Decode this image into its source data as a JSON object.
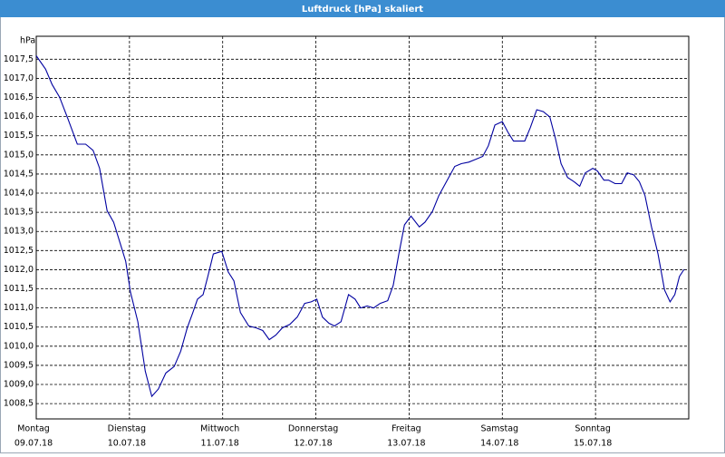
{
  "chart_data": {
    "type": "line",
    "title": "Luftdruck [hPa] skaliert",
    "y_unit": "hPa",
    "xlim": [
      0,
      7
    ],
    "ylim": [
      1008.1,
      1018.1
    ],
    "grid": true,
    "xticks": [
      {
        "value": 0,
        "label": "Montag",
        "date": "09.07.18"
      },
      {
        "value": 1,
        "label": "Dienstag",
        "date": "10.07.18"
      },
      {
        "value": 2,
        "label": "Mittwoch",
        "date": "11.07.18"
      },
      {
        "value": 3,
        "label": "Donnerstag",
        "date": "12.07.18"
      },
      {
        "value": 4,
        "label": "Freitag",
        "date": "13.07.18"
      },
      {
        "value": 5,
        "label": "Samstag",
        "date": "14.07.18"
      },
      {
        "value": 6,
        "label": "Sonntag",
        "date": "15.07.18"
      }
    ],
    "yticks": [
      {
        "value": 1008.5,
        "label": "1008,5"
      },
      {
        "value": 1009,
        "label": "1009,0"
      },
      {
        "value": 1009.5,
        "label": "1009,5"
      },
      {
        "value": 1010,
        "label": "1010,0"
      },
      {
        "value": 1010.5,
        "label": "1010,5"
      },
      {
        "value": 1011,
        "label": "1011,0"
      },
      {
        "value": 1011.5,
        "label": "1011,5"
      },
      {
        "value": 1012,
        "label": "1012,0"
      },
      {
        "value": 1012.5,
        "label": "1012,5"
      },
      {
        "value": 1013,
        "label": "1013,0"
      },
      {
        "value": 1013.5,
        "label": "1013,5"
      },
      {
        "value": 1014,
        "label": "1014,0"
      },
      {
        "value": 1014.5,
        "label": "1014,5"
      },
      {
        "value": 1015,
        "label": "1015,0"
      },
      {
        "value": 1015.5,
        "label": "1015,5"
      },
      {
        "value": 1016,
        "label": "1016,0"
      },
      {
        "value": 1016.5,
        "label": "1016,5"
      },
      {
        "value": 1017,
        "label": "1017,0"
      },
      {
        "value": 1017.5,
        "label": "1017,5"
      }
    ],
    "x": [
      0,
      0.1,
      0.17,
      0.25,
      0.34,
      0.44,
      0.53,
      0.61,
      0.68,
      0.76,
      0.83,
      0.9,
      0.96,
      1.01,
      1.09,
      1.17,
      1.24,
      1.31,
      1.39,
      1.48,
      1.55,
      1.62,
      1.68,
      1.73,
      1.79,
      1.84,
      1.9,
      1.99,
      2.06,
      2.12,
      2.19,
      2.28,
      2.36,
      2.43,
      2.5,
      2.57,
      2.64,
      2.72,
      2.8,
      2.88,
      2.95,
      3.01,
      3.07,
      3.14,
      3.2,
      3.27,
      3.35,
      3.42,
      3.48,
      3.55,
      3.62,
      3.69,
      3.77,
      3.83,
      3.89,
      3.95,
      4.02,
      4.11,
      4.17,
      4.25,
      4.32,
      4.4,
      4.49,
      4.56,
      4.64,
      4.71,
      4.79,
      4.85,
      4.92,
      5.0,
      5.06,
      5.12,
      5.17,
      5.24,
      5.3,
      5.37,
      5.44,
      5.51,
      5.57,
      5.63,
      5.7,
      5.77,
      5.83,
      5.89,
      5.97,
      6.02,
      6.09,
      6.14,
      6.21,
      6.28,
      6.34,
      6.41,
      6.47,
      6.53,
      6.6,
      6.67,
      6.74,
      6.8,
      6.85,
      6.9,
      6.95
    ],
    "series": [
      {
        "name": "Luftdruck",
        "color": "#0000a0",
        "values": [
          1017.59,
          1017.24,
          1016.84,
          1016.51,
          1015.94,
          1015.28,
          1015.28,
          1015.12,
          1014.65,
          1013.54,
          1013.24,
          1012.69,
          1012.22,
          1011.42,
          1010.64,
          1009.35,
          1008.69,
          1008.88,
          1009.3,
          1009.47,
          1009.87,
          1010.48,
          1010.88,
          1011.23,
          1011.35,
          1011.82,
          1012.41,
          1012.48,
          1011.94,
          1011.71,
          1010.88,
          1010.53,
          1010.48,
          1010.41,
          1010.17,
          1010.29,
          1010.48,
          1010.57,
          1010.76,
          1011.12,
          1011.16,
          1011.23,
          1010.76,
          1010.6,
          1010.53,
          1010.64,
          1011.35,
          1011.23,
          1011.0,
          1011.05,
          1011.0,
          1011.12,
          1011.19,
          1011.59,
          1012.41,
          1013.17,
          1013.4,
          1013.12,
          1013.24,
          1013.52,
          1013.94,
          1014.3,
          1014.7,
          1014.77,
          1014.81,
          1014.88,
          1014.96,
          1015.24,
          1015.78,
          1015.87,
          1015.59,
          1015.36,
          1015.36,
          1015.36,
          1015.71,
          1016.18,
          1016.13,
          1015.99,
          1015.43,
          1014.77,
          1014.41,
          1014.3,
          1014.18,
          1014.53,
          1014.65,
          1014.58,
          1014.34,
          1014.34,
          1014.25,
          1014.25,
          1014.53,
          1014.48,
          1014.3,
          1013.94,
          1013.12,
          1012.41,
          1011.47,
          1011.16,
          1011.35,
          1011.82,
          1012.01
        ]
      }
    ]
  }
}
